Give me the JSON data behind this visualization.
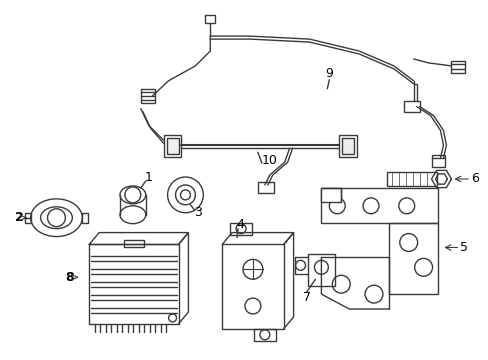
{
  "background_color": "#ffffff",
  "line_color": "#3a3a3a",
  "line_width": 1.0,
  "fig_width": 4.89,
  "fig_height": 3.6,
  "dpi": 100
}
